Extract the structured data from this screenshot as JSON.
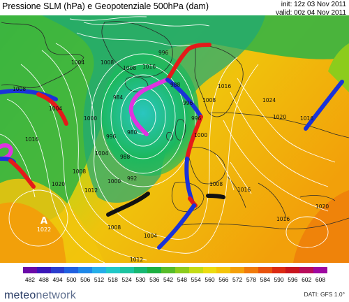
{
  "header": {
    "title": "Pressione SLM (hPa) e Geopotenziale 500hPa (dam)",
    "init": "init: 12z 03 Nov 2011",
    "valid": "valid: 00z 04 Nov 2011"
  },
  "map": {
    "high_label": "A",
    "high_value": "1022",
    "isobar_labels": [
      "1016",
      "1012",
      "1008",
      "1004",
      "1000",
      "996",
      "992",
      "988",
      "984",
      "980",
      "1020",
      "1024"
    ],
    "isobar_color": "#ffffff",
    "front_colors": {
      "cold": "#1a33d9",
      "warm": "#e41a1a",
      "occluded": "#e033e0",
      "stationary": "#111111"
    }
  },
  "colorbar": {
    "labels": [
      "482",
      "488",
      "494",
      "500",
      "506",
      "512",
      "518",
      "524",
      "530",
      "536",
      "542",
      "548",
      "554",
      "560",
      "566",
      "572",
      "578",
      "584",
      "590",
      "596",
      "602",
      "608"
    ],
    "colors": [
      "#6a0aa8",
      "#3a16b8",
      "#2a3ccd",
      "#2060e0",
      "#1e88e8",
      "#24aee8",
      "#20c8c8",
      "#1cc4a0",
      "#16b872",
      "#1cb040",
      "#56bc28",
      "#8ccc1c",
      "#c4dc14",
      "#ecdc10",
      "#f4c40a",
      "#f4a00a",
      "#f07a0a",
      "#e8520c",
      "#dc2a12",
      "#c8141c",
      "#b80c5a",
      "#9e08a0"
    ]
  },
  "footer": {
    "logo_left": "meteo",
    "logo_right": "network",
    "credit": "DATI: GFS 1.0°"
  }
}
